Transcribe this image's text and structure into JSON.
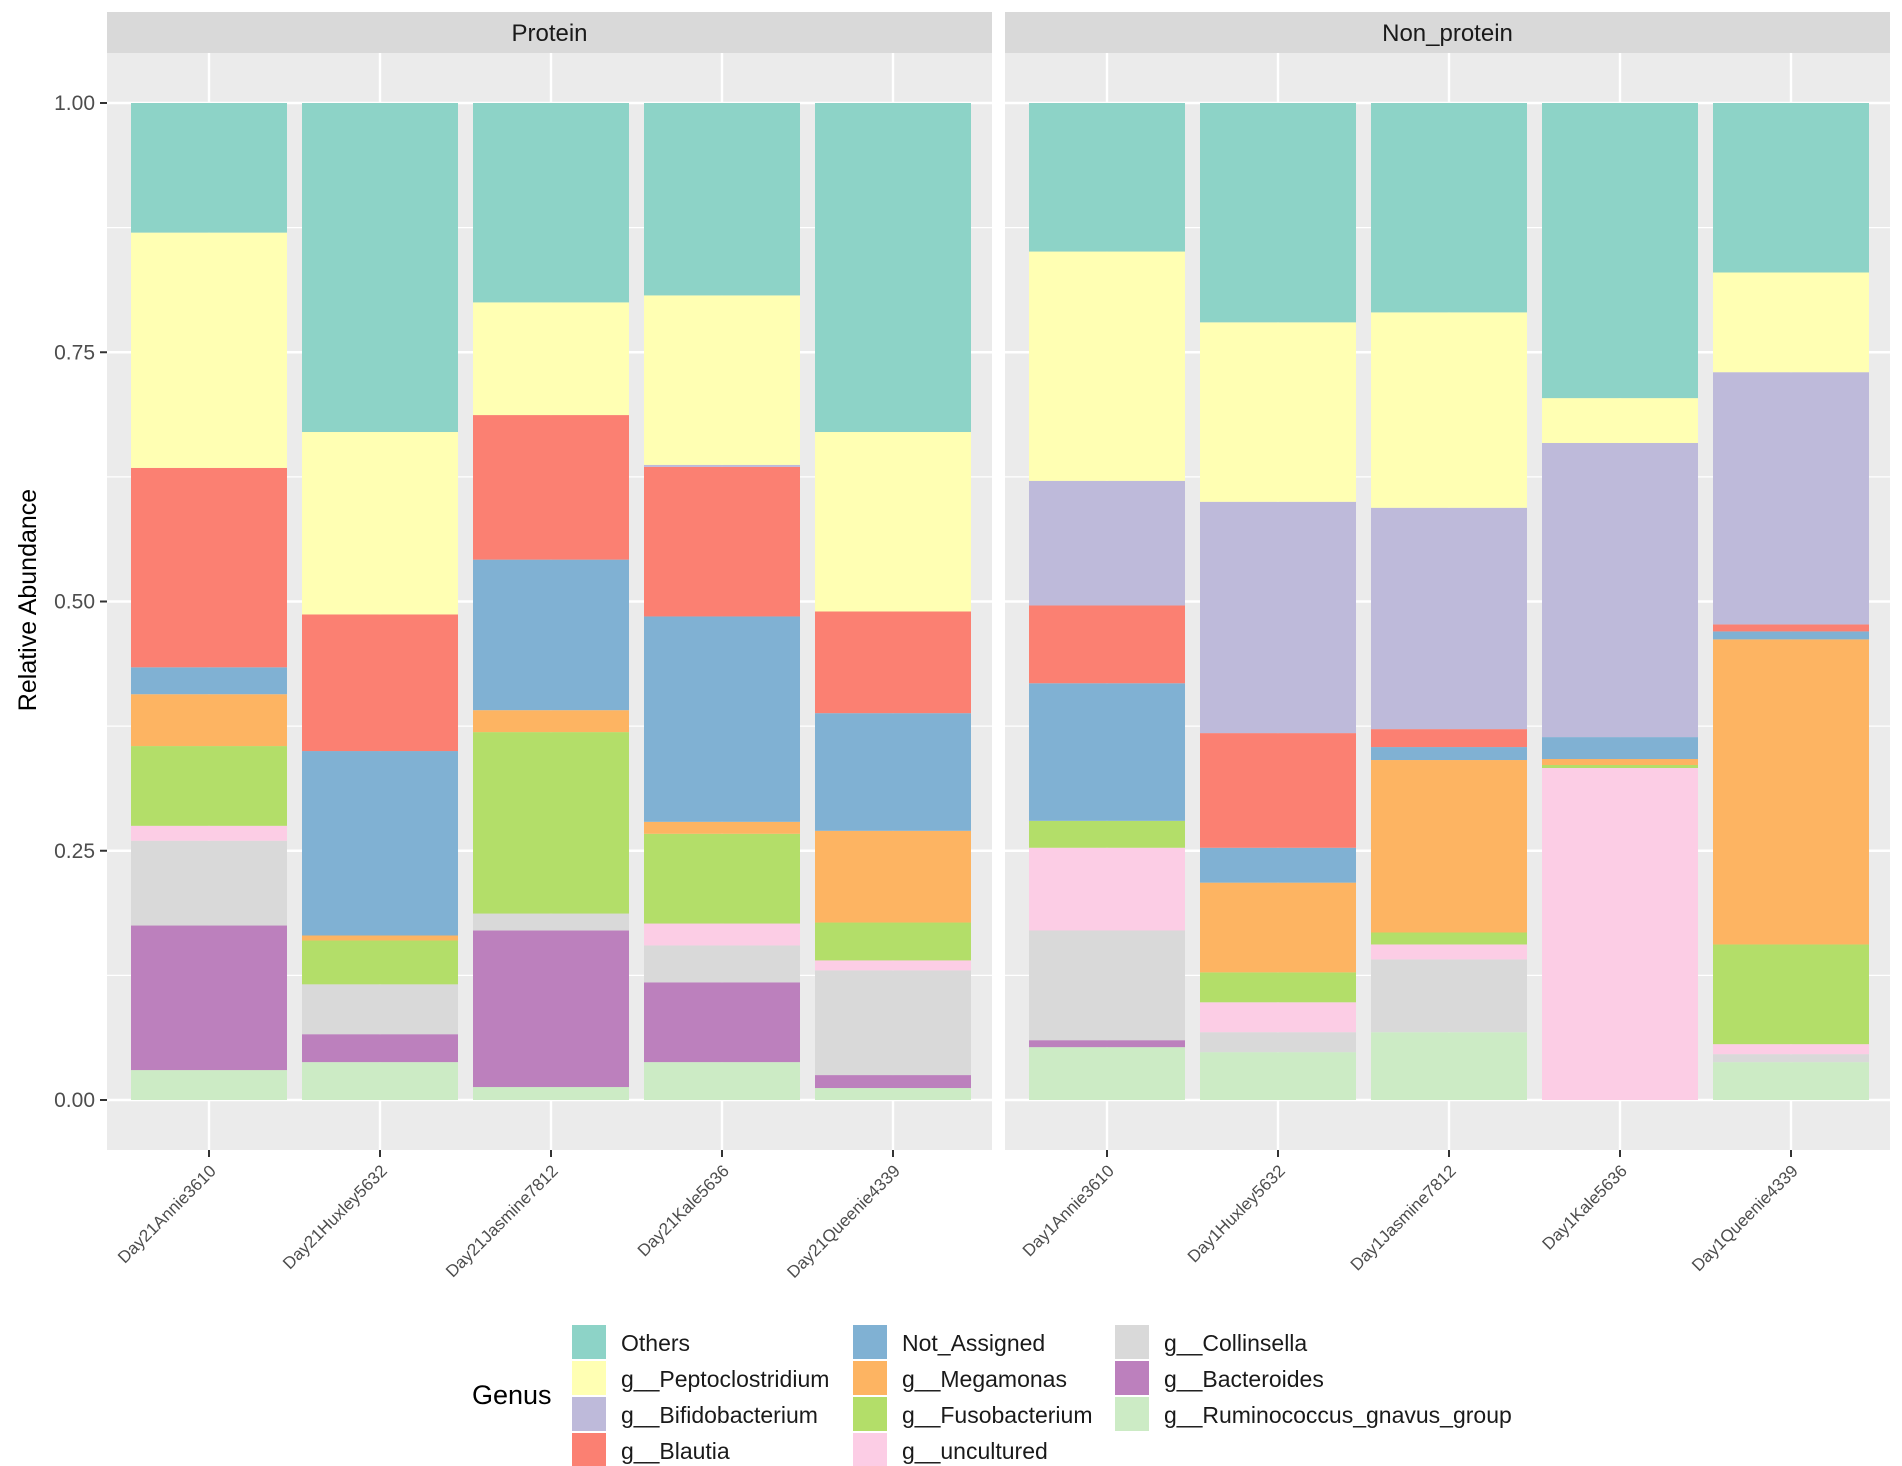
{
  "chart_data": {
    "type": "bar",
    "stacked": true,
    "ylabel": "Relative Abundance",
    "xlabel": "",
    "ylim": [
      0,
      1
    ],
    "yticks": [
      "0.00",
      "0.25",
      "0.50",
      "0.75",
      "1.00"
    ],
    "ytick_values": [
      0,
      0.25,
      0.5,
      0.75,
      1.0
    ],
    "legend_title": "Genus",
    "legend_position": "bottom",
    "genera": [
      {
        "name": "g__Ruminococcus_gnavus_group",
        "color": "#ccebc5"
      },
      {
        "name": "g__Bacteroides",
        "color": "#bc80bd"
      },
      {
        "name": "g__Collinsella",
        "color": "#d9d9d9"
      },
      {
        "name": "g__uncultured",
        "color": "#fccde5"
      },
      {
        "name": "g__Fusobacterium",
        "color": "#b3de69"
      },
      {
        "name": "g__Megamonas",
        "color": "#fdb462"
      },
      {
        "name": "Not_Assigned",
        "color": "#80b1d3"
      },
      {
        "name": "g__Blautia",
        "color": "#fb8072"
      },
      {
        "name": "g__Bifidobacterium",
        "color": "#bebada"
      },
      {
        "name": "g__Peptoclostridium",
        "color": "#ffffb3"
      },
      {
        "name": "Others",
        "color": "#8dd3c7"
      }
    ],
    "legend_columns": [
      [
        "Others",
        "g__Peptoclostridium",
        "g__Bifidobacterium",
        "g__Blautia"
      ],
      [
        "Not_Assigned",
        "g__Megamonas",
        "g__Fusobacterium",
        "g__uncultured"
      ],
      [
        "g__Collinsella",
        "g__Bacteroides",
        "g__Ruminococcus_gnavus_group"
      ]
    ],
    "panels": [
      {
        "title": "Protein",
        "samples": [
          {
            "name": "Day21Annie3610",
            "values": [
              0.03,
              0.145,
              0.085,
              0.015,
              0.08,
              0.052,
              0.027,
              0.2,
              0.0,
              0.236,
              0.13
            ]
          },
          {
            "name": "Day21Huxley5632",
            "values": [
              0.038,
              0.028,
              0.05,
              0.0,
              0.044,
              0.005,
              0.185,
              0.137,
              0.0,
              0.183,
              0.33
            ]
          },
          {
            "name": "Day21Jasmine7812",
            "values": [
              0.013,
              0.157,
              0.017,
              0.0,
              0.182,
              0.022,
              0.151,
              0.145,
              0.0,
              0.113,
              0.2
            ]
          },
          {
            "name": "Day21Kale5636",
            "values": [
              0.038,
              0.08,
              0.037,
              0.022,
              0.09,
              0.012,
              0.206,
              0.15,
              0.002,
              0.17,
              0.193
            ]
          },
          {
            "name": "Day21Queenie4339",
            "values": [
              0.012,
              0.013,
              0.105,
              0.01,
              0.038,
              0.092,
              0.118,
              0.102,
              0.0,
              0.18,
              0.33
            ]
          }
        ]
      },
      {
        "title": "Non_protein",
        "samples": [
          {
            "name": "Day1Annie3610",
            "values": [
              0.053,
              0.007,
              0.11,
              0.083,
              0.027,
              0.0,
              0.138,
              0.078,
              0.125,
              0.23,
              0.149
            ]
          },
          {
            "name": "Day1Huxley5632",
            "values": [
              0.048,
              0.0,
              0.02,
              0.03,
              0.03,
              0.09,
              0.035,
              0.115,
              0.232,
              0.18,
              0.22
            ]
          },
          {
            "name": "Day1Jasmine7812",
            "values": [
              0.068,
              0.0,
              0.073,
              0.015,
              0.012,
              0.173,
              0.013,
              0.018,
              0.222,
              0.196,
              0.21
            ]
          },
          {
            "name": "Day1Kale5636",
            "values": [
              0.0,
              0.0,
              0.0,
              0.333,
              0.003,
              0.006,
              0.022,
              0.0,
              0.295,
              0.045,
              0.296
            ]
          },
          {
            "name": "Day1Queenie4339",
            "values": [
              0.038,
              0.0,
              0.008,
              0.01,
              0.1,
              0.306,
              0.008,
              0.007,
              0.253,
              0.1,
              0.17
            ]
          }
        ]
      }
    ]
  }
}
